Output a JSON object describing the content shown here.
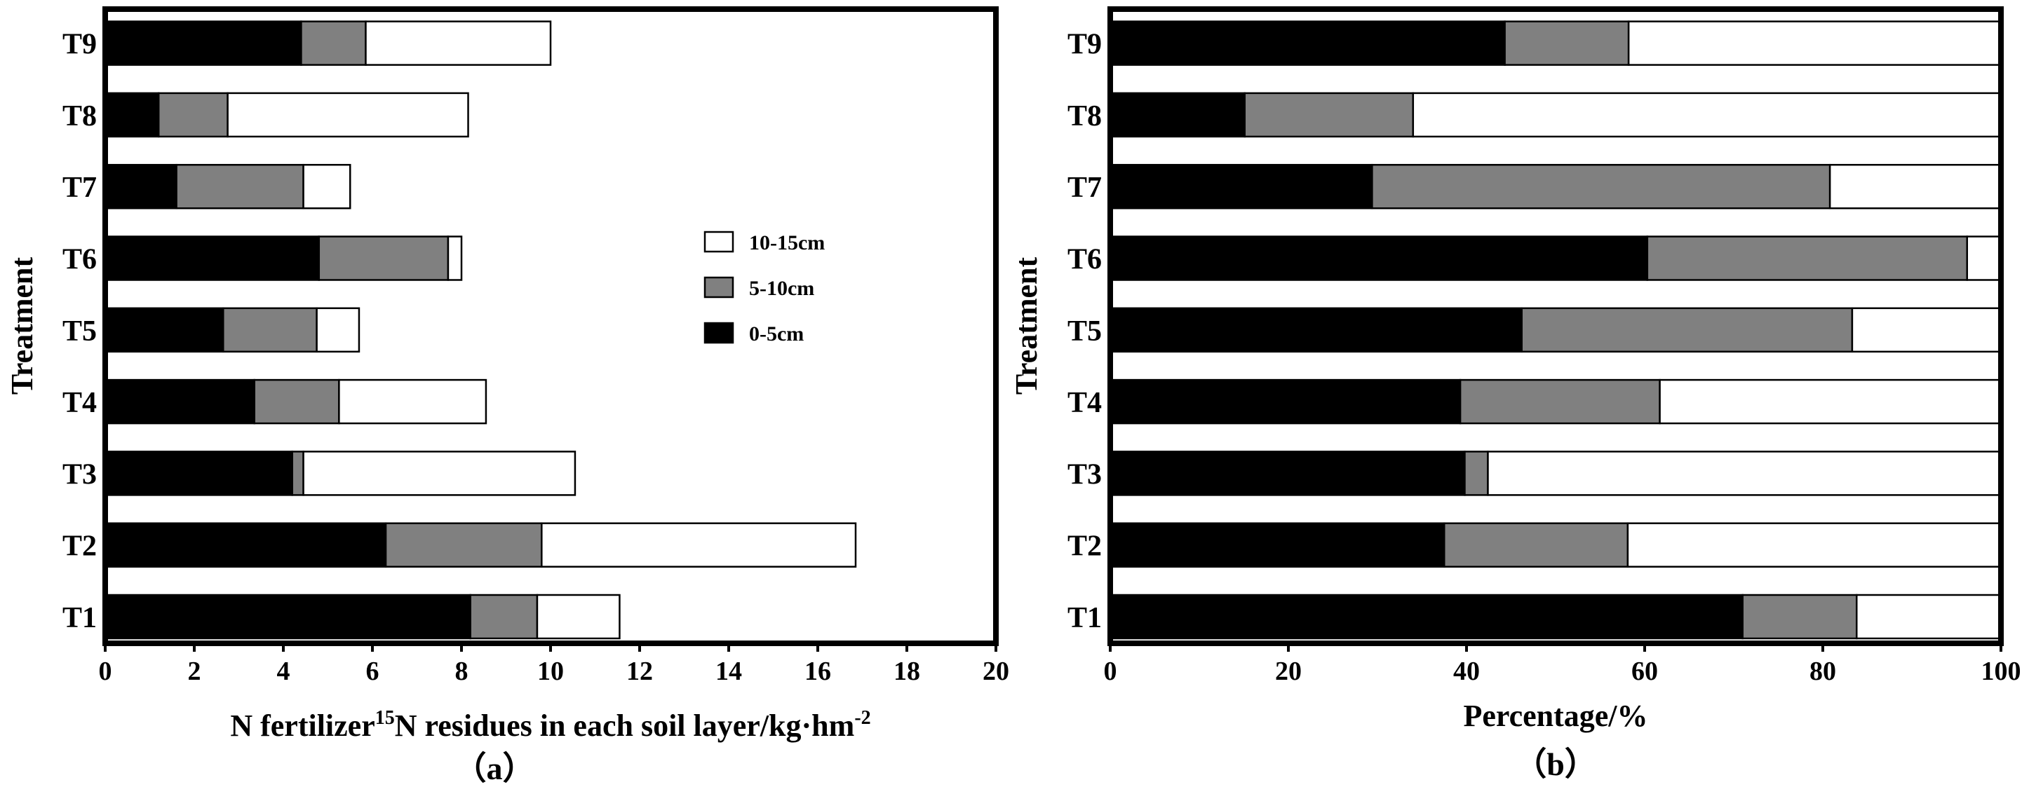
{
  "chart_data": [
    {
      "type": "bar",
      "orientation": "horizontal",
      "stacked": true,
      "categories": [
        "T1",
        "T2",
        "T3",
        "T4",
        "T5",
        "T6",
        "T7",
        "T8",
        "T9"
      ],
      "series": [
        {
          "name": "0-5cm",
          "color": "#000000",
          "values": [
            8.2,
            6.3,
            4.2,
            3.35,
            2.65,
            4.8,
            1.6,
            1.2,
            4.4
          ]
        },
        {
          "name": "5-10cm",
          "color": "#808080",
          "values": [
            1.5,
            3.5,
            0.25,
            1.9,
            2.1,
            2.9,
            2.85,
            1.55,
            1.45
          ]
        },
        {
          "name": "10-15cm",
          "color": "#ffffff",
          "values": [
            1.85,
            7.05,
            6.1,
            3.3,
            0.95,
            0.3,
            1.05,
            5.4,
            4.15
          ]
        }
      ],
      "xlabel_parts": [
        "N fertilizer",
        "15",
        "N residues in each soil layer/kg·hm",
        "-2"
      ],
      "ylabel": "Treatment",
      "xlim": [
        0,
        20
      ],
      "xticks": [
        "0",
        "2",
        "4",
        "6",
        "8",
        "10",
        "12",
        "14",
        "16",
        "18",
        "20"
      ],
      "panel_label": "（a）",
      "grid": false,
      "legend": {
        "placement": "right-middle",
        "entries": [
          "10-15cm",
          "5-10cm",
          "0-5cm"
        ]
      }
    },
    {
      "type": "bar",
      "orientation": "horizontal",
      "stacked": true,
      "categories": [
        "T1",
        "T2",
        "T3",
        "T4",
        "T5",
        "T6",
        "T7",
        "T8",
        "T9"
      ],
      "series": [
        {
          "name": "0-5cm",
          "color": "#000000",
          "values": [
            71,
            37.5,
            39.8,
            39.3,
            46.2,
            60.3,
            29.4,
            15.1,
            44.3
          ]
        },
        {
          "name": "5-10cm",
          "color": "#808080",
          "values": [
            12.8,
            20.6,
            2.6,
            22.4,
            37.1,
            35.9,
            51.4,
            18.9,
            13.9
          ]
        },
        {
          "name": "10-15cm",
          "color": "#ffffff",
          "values": [
            16.2,
            41.9,
            57.6,
            38.3,
            16.7,
            3.8,
            19.2,
            66.0,
            41.8
          ]
        }
      ],
      "xlabel": "Percentage/%",
      "ylabel": "Treatment",
      "xlim": [
        0,
        100
      ],
      "xticks": [
        "0",
        "20",
        "40",
        "60",
        "80",
        "100"
      ],
      "panel_label": "（b）",
      "grid": false
    }
  ]
}
